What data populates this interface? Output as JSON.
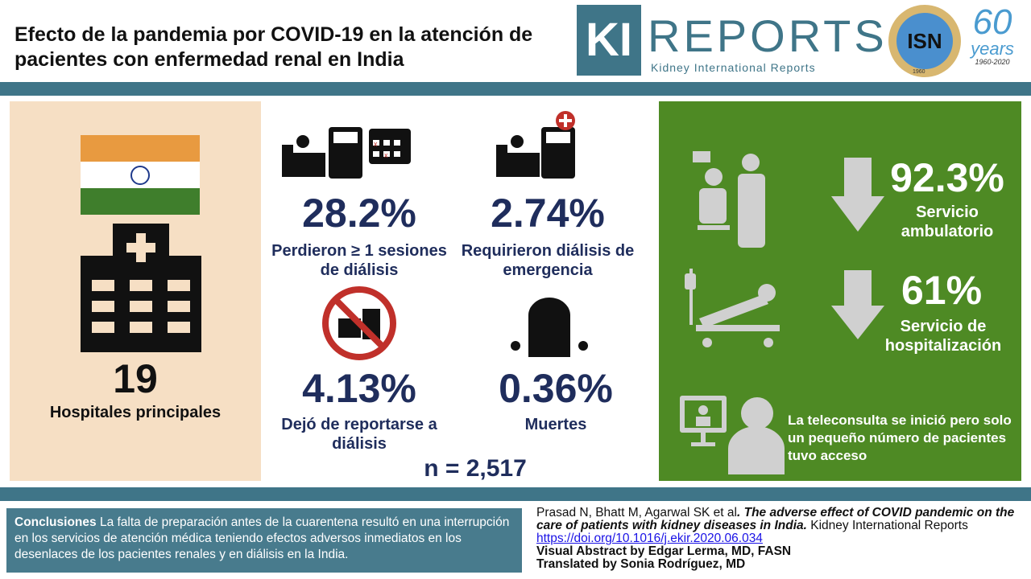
{
  "title": "Efecto de la pandemia por COVID-19 en la atención de pacientes con enfermedad renal en India",
  "logos": {
    "ki": "KI",
    "reports": "REPORTS",
    "ki_sub": "Kidney International Reports",
    "isn": "ISN",
    "isn_ring": "INTERNATIONAL SOCIETY OF NEPHROLOGY",
    "isn_year": "1960",
    "anniv": "60",
    "anniv_word": "years",
    "anniv_range": "1960-2020"
  },
  "colors": {
    "band": "#3f7588",
    "peach": "#f6dfc4",
    "navy": "#1f2d5c",
    "green": "#4e8a24"
  },
  "left": {
    "count": "19",
    "label": "Hospitales principales"
  },
  "stats": [
    {
      "value": "28.2%",
      "label": "Perdieron ≥ 1 sesiones de diálisis"
    },
    {
      "value": "2.74%",
      "label": "Requirieron diálisis de emergencia"
    },
    {
      "value": "4.13%",
      "label": "Dejó de reportarse a diálisis"
    },
    {
      "value": "0.36%",
      "label": "Muertes"
    }
  ],
  "n": "n = 2,517",
  "green": {
    "outpatient": {
      "value": "92.3%",
      "label": "Servicio ambulatorio"
    },
    "inpatient": {
      "value": "61%",
      "label": "Servicio de hospitalización"
    },
    "tele": "La teleconsulta se inició pero solo un pequeño número de pacientes tuvo acceso"
  },
  "conclusion": {
    "heading": "Conclusiones",
    "text": " La falta de preparación antes de la cuarentena resultó en una interrupción en los servicios de atención médica teniendo efectos adversos inmediatos en los desenlaces de los pacientes renales y en diálisis en la India."
  },
  "reference": {
    "authors": "Prasad N, Bhatt M, Agarwal SK et al",
    "title": ". The adverse effect of COVID pandemic on the care of patients with kidney diseases in India.",
    "journal": " Kidney International Reports",
    "doi": "https://doi.org/10.1016/j.ekir.2020.06.034",
    "credit": "Visual Abstract by Edgar Lerma, MD, FASN",
    "translation": "Translated by Sonia Rodríguez, MD"
  }
}
